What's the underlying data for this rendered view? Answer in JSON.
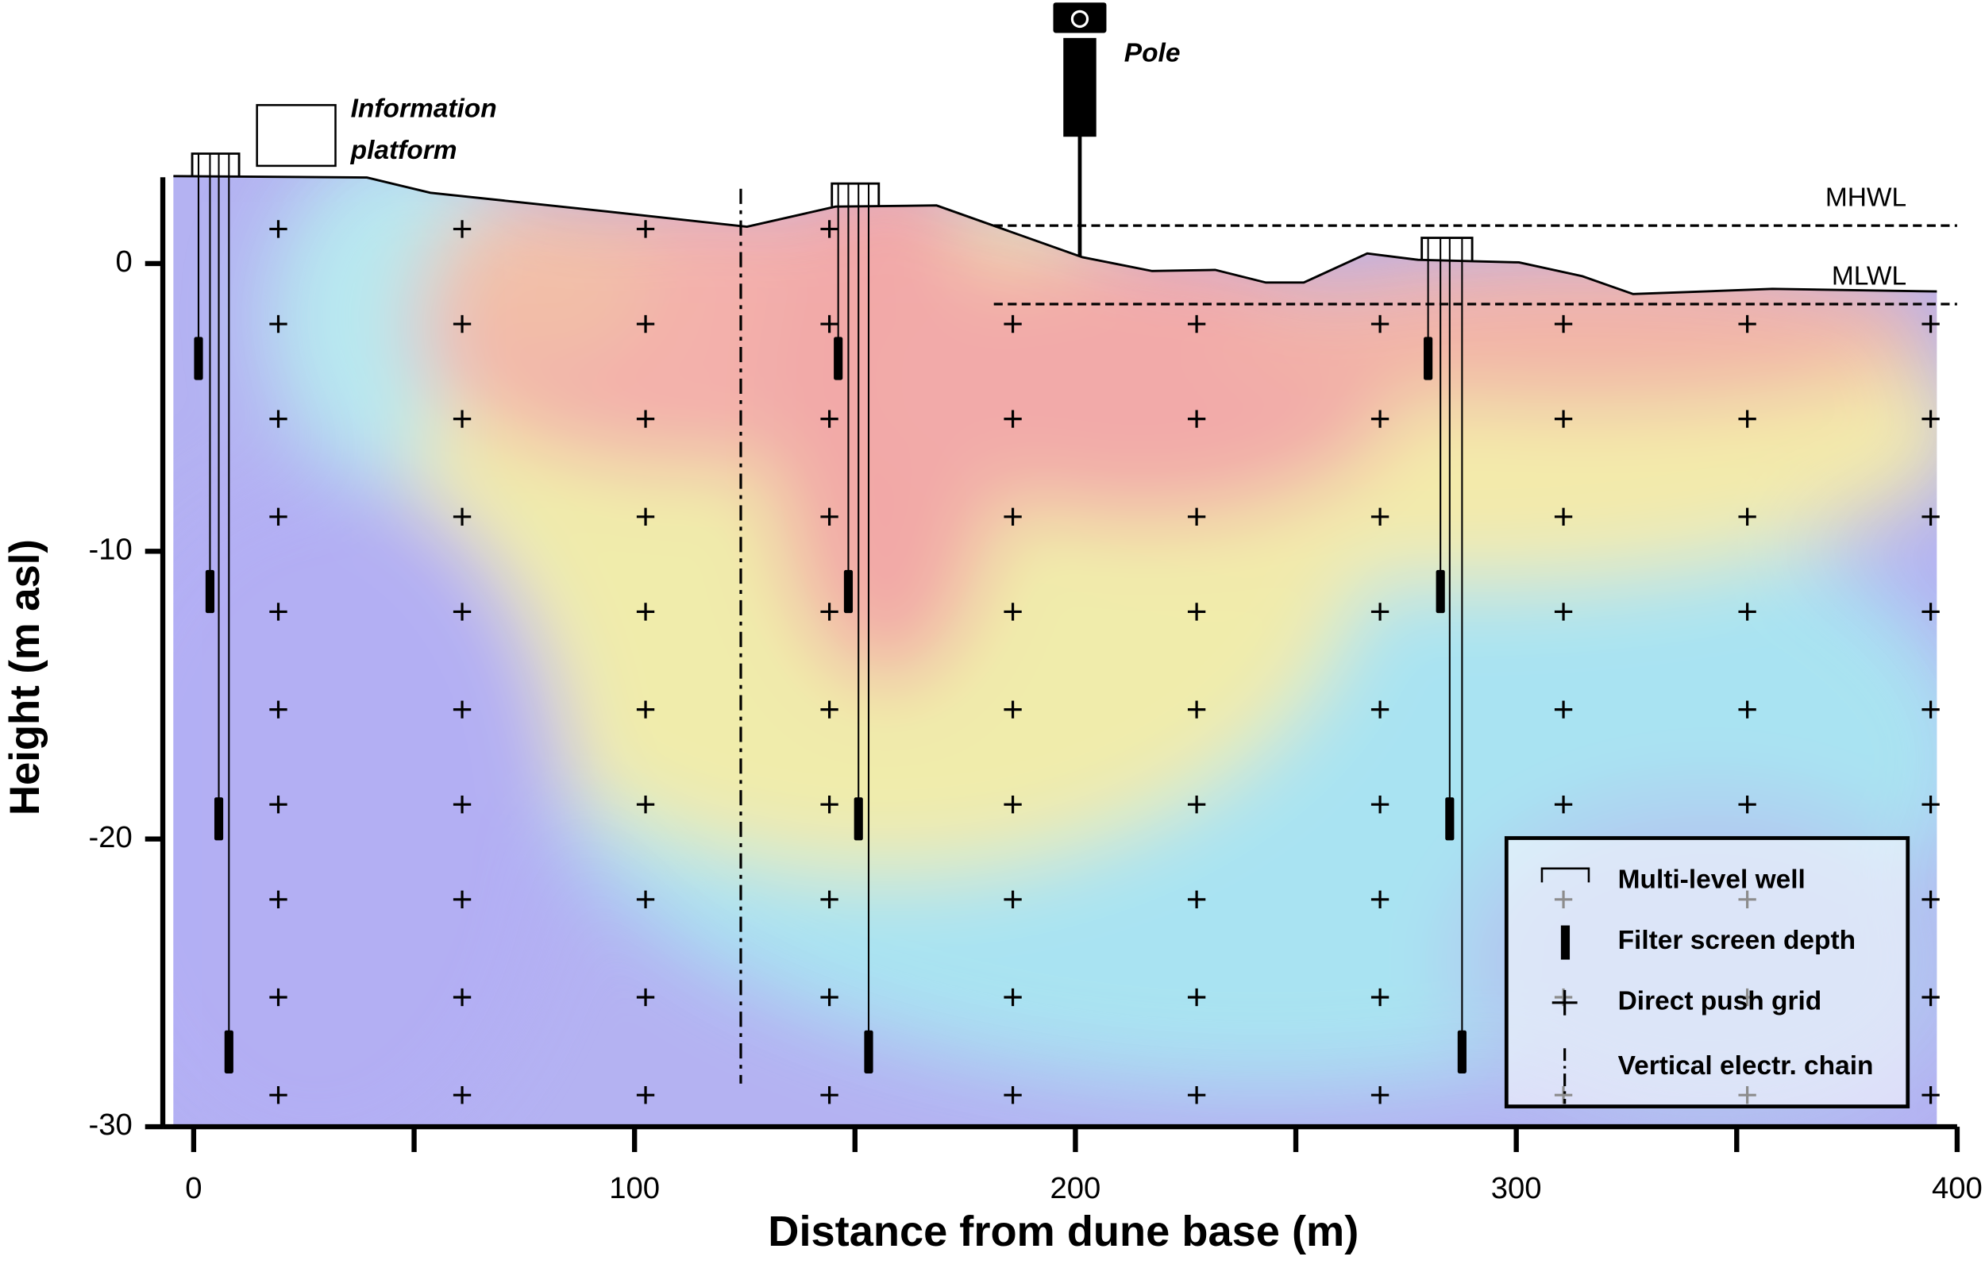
{
  "chart_data": {
    "type": "cross-section",
    "xlabel": "Distance from dune base (m)",
    "ylabel": "Height (m asl)",
    "xlim": [
      -7,
      400
    ],
    "ylim": [
      -30,
      3
    ],
    "xticks": [
      0,
      100,
      200,
      300,
      400
    ],
    "xminor_ticks": [
      50,
      150,
      250,
      350
    ],
    "yticks": [
      -30,
      -20,
      -10,
      0
    ],
    "ground_surface": {
      "x": [
        -4.6,
        39.3,
        53.7,
        96.8,
        125.5,
        145.6,
        168.5,
        201.6,
        217.4,
        231.7,
        243.2,
        251.8,
        266.2,
        277.7,
        300.6,
        315.0,
        326.5,
        358.1,
        395.4
      ],
      "y": [
        3.04,
        2.99,
        2.46,
        1.76,
        1.28,
        1.98,
        2.02,
        0.22,
        -0.26,
        -0.22,
        -0.66,
        -0.66,
        0.35,
        0.13,
        0.04,
        -0.44,
        -1.06,
        -0.88,
        -0.97
      ]
    },
    "water_levels": [
      {
        "name": "MHWL",
        "value": 1.32,
        "x_start": 181.5
      },
      {
        "name": "MLWL",
        "value": -1.41,
        "x_start": 181.5
      }
    ],
    "wells": [
      {
        "pipe_x": [
          1.1,
          3.7,
          5.7,
          8.0
        ],
        "screen_depths": [
          -3.3,
          -11.4,
          -19.3,
          -27.4
        ]
      },
      {
        "pipe_x": [
          146.2,
          148.5,
          150.8,
          153.1
        ],
        "screen_depths": [
          -3.3,
          -11.4,
          -19.3,
          -27.4
        ]
      },
      {
        "pipe_x": [
          280.0,
          282.8,
          284.9,
          287.7
        ],
        "screen_depths": [
          -3.3,
          -11.4,
          -19.3,
          -27.4
        ]
      }
    ],
    "grid_x": [
      19.2,
      60.9,
      102.5,
      144.2,
      185.8,
      227.5,
      269.1,
      310.7,
      352.4,
      394.0
    ],
    "grid_y": [
      1.2,
      -2.1,
      -5.4,
      -8.8,
      -12.1,
      -15.5,
      -18.8,
      -22.1,
      -25.5,
      -28.9
    ],
    "electrode_chain": {
      "x": 124.1,
      "top": 2.6,
      "bottom": -28.5
    },
    "pole": {
      "label": "Pole",
      "x": 201
    },
    "platform_label": [
      "Information",
      "platform"
    ],
    "legend": [
      "Multi-level well",
      "Filter screen depth",
      "Direct push grid",
      "Vertical electr. chain"
    ]
  }
}
